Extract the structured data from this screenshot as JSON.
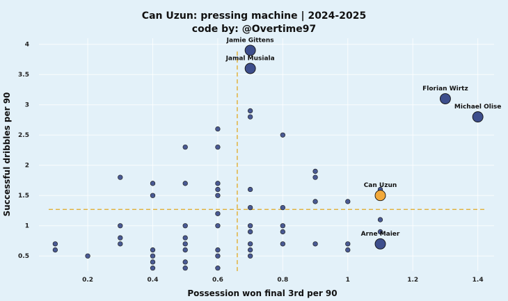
{
  "chart_data": {
    "type": "scatter",
    "title": "Can Uzun: pressing machine | 2024-2025",
    "subtitle": "code by: @Overtime97",
    "xlabel": "Possession won final 3rd per 90",
    "ylabel": "Successful dribbles per 90",
    "xlim": [
      0.05,
      1.45
    ],
    "ylim": [
      0.25,
      4.1
    ],
    "x_ticks": [
      0.2,
      0.4,
      0.6,
      0.8,
      1,
      1.2,
      1.4
    ],
    "x_tick_labels": [
      "0.2",
      "0.4",
      "0.6",
      "0.8",
      "1",
      "1.2",
      "1.4"
    ],
    "y_ticks": [
      0.5,
      1,
      1.5,
      2,
      2.5,
      3,
      3.5,
      4
    ],
    "y_tick_labels": [
      "0.5",
      "1",
      "1.5",
      "2",
      "2.5",
      "3",
      "3.5",
      "4"
    ],
    "grid": true,
    "reference_lines": {
      "x": 0.66,
      "y": 1.27
    },
    "colors": {
      "default": "#3d4e8c",
      "highlight": "#f2a93b",
      "reference": "#e0a820",
      "edge": "#111111"
    },
    "labeled_points": [
      {
        "name": "Jamie Gittens",
        "x": 0.7,
        "y": 3.9
      },
      {
        "name": "Jamal Musiala",
        "x": 0.7,
        "y": 3.6
      },
      {
        "name": "Florian Wirtz",
        "x": 1.3,
        "y": 3.1
      },
      {
        "name": "Michael Olise",
        "x": 1.4,
        "y": 2.8
      },
      {
        "name": "Can Uzun",
        "x": 1.1,
        "y": 1.5,
        "highlight": true
      },
      {
        "name": "Arne Maier",
        "x": 1.1,
        "y": 0.7
      }
    ],
    "points": [
      [
        0.1,
        0.7
      ],
      [
        0.1,
        0.6
      ],
      [
        0.2,
        0.5
      ],
      [
        0.3,
        1.8
      ],
      [
        0.3,
        1.0
      ],
      [
        0.3,
        0.8
      ],
      [
        0.3,
        0.7
      ],
      [
        0.4,
        1.7
      ],
      [
        0.4,
        1.5
      ],
      [
        0.4,
        0.6
      ],
      [
        0.4,
        0.5
      ],
      [
        0.4,
        0.4
      ],
      [
        0.4,
        0.3
      ],
      [
        0.5,
        2.3
      ],
      [
        0.5,
        1.7
      ],
      [
        0.5,
        1.0
      ],
      [
        0.5,
        0.8
      ],
      [
        0.5,
        0.7
      ],
      [
        0.5,
        0.6
      ],
      [
        0.5,
        0.4
      ],
      [
        0.5,
        0.3
      ],
      [
        0.6,
        2.6
      ],
      [
        0.6,
        2.3
      ],
      [
        0.6,
        1.7
      ],
      [
        0.6,
        1.6
      ],
      [
        0.6,
        1.5
      ],
      [
        0.6,
        1.2
      ],
      [
        0.6,
        1.0
      ],
      [
        0.6,
        0.6
      ],
      [
        0.6,
        0.5
      ],
      [
        0.6,
        0.3
      ],
      [
        0.7,
        2.9
      ],
      [
        0.7,
        2.8
      ],
      [
        0.7,
        1.6
      ],
      [
        0.7,
        1.3
      ],
      [
        0.7,
        1.0
      ],
      [
        0.7,
        0.9
      ],
      [
        0.7,
        0.7
      ],
      [
        0.7,
        0.6
      ],
      [
        0.7,
        0.5
      ],
      [
        0.8,
        2.5
      ],
      [
        0.8,
        1.3
      ],
      [
        0.8,
        1.0
      ],
      [
        0.8,
        0.9
      ],
      [
        0.8,
        0.7
      ],
      [
        0.9,
        1.9
      ],
      [
        0.9,
        1.8
      ],
      [
        0.9,
        1.4
      ],
      [
        0.9,
        0.7
      ],
      [
        1.0,
        1.4
      ],
      [
        1.0,
        0.7
      ],
      [
        1.0,
        0.6
      ],
      [
        1.1,
        1.6
      ],
      [
        1.1,
        1.1
      ],
      [
        1.1,
        0.9
      ]
    ]
  }
}
